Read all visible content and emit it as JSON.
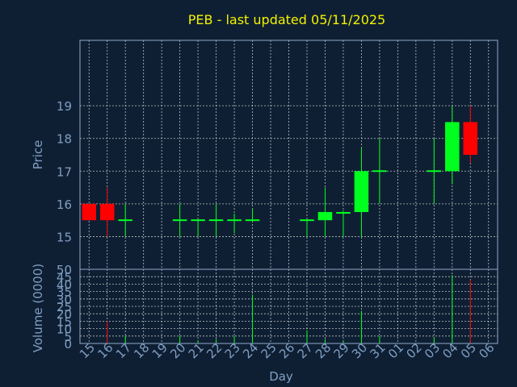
{
  "chart_data": {
    "type": "candlestick",
    "title": "PEB - last updated 05/11/2025",
    "xlabel": "Day",
    "colors": {
      "background": "#0f1f33",
      "title": "#f2f200",
      "axis_text": "#7f9fc4",
      "grid": "#e8e8e8",
      "frame": "#8fa8c8",
      "up": "#00ff1e",
      "down": "#ff0000"
    },
    "days": [
      "15",
      "16",
      "17",
      "18",
      "19",
      "20",
      "21",
      "22",
      "23",
      "24",
      "25",
      "26",
      "27",
      "28",
      "29",
      "30",
      "31",
      "01",
      "02",
      "03",
      "04",
      "05",
      "06"
    ],
    "price_panel": {
      "ylabel": "Price",
      "ylim": [
        14,
        21
      ],
      "ticks": [
        15,
        16,
        17,
        18,
        19
      ]
    },
    "volume_panel": {
      "ylabel": "Volume (0000)",
      "ylim": [
        0,
        50
      ],
      "ticks": [
        0,
        5,
        10,
        15,
        20,
        25,
        30,
        35,
        40,
        45,
        50
      ]
    },
    "candles": [
      {
        "day": "15",
        "open": 16.0,
        "high": 16.0,
        "low": 15.5,
        "close": 15.5,
        "volume": 0
      },
      {
        "day": "16",
        "open": 16.0,
        "high": 16.5,
        "low": 15.0,
        "close": 15.5,
        "volume": 15
      },
      {
        "day": "17",
        "open": 15.5,
        "high": 16.0,
        "low": 15.0,
        "close": 15.5,
        "volume": 5
      },
      {
        "day": "20",
        "open": 15.5,
        "high": 16.0,
        "low": 15.0,
        "close": 15.5,
        "volume": 5
      },
      {
        "day": "21",
        "open": 15.5,
        "high": 15.5,
        "low": 15.0,
        "close": 15.5,
        "volume": 2
      },
      {
        "day": "22",
        "open": 15.5,
        "high": 16.0,
        "low": 15.0,
        "close": 15.5,
        "volume": 3
      },
      {
        "day": "23",
        "open": 15.5,
        "high": 15.7,
        "low": 15.1,
        "close": 15.5,
        "volume": 5
      },
      {
        "day": "24",
        "open": 15.5,
        "high": 15.85,
        "low": 15.5,
        "close": 15.5,
        "volume": 33
      },
      {
        "day": "27",
        "open": 15.5,
        "high": 15.5,
        "low": 15.0,
        "close": 15.5,
        "volume": 9
      },
      {
        "day": "28",
        "open": 15.5,
        "high": 16.5,
        "low": 15.0,
        "close": 15.75,
        "volume": 3
      },
      {
        "day": "29",
        "open": 15.7,
        "high": 15.8,
        "low": 15.0,
        "close": 15.75,
        "volume": 2
      },
      {
        "day": "30",
        "open": 15.75,
        "high": 17.7,
        "low": 15.0,
        "close": 17.0,
        "volume": 22
      },
      {
        "day": "31",
        "open": 17.0,
        "high": 18.0,
        "low": 16.0,
        "close": 17.0,
        "volume": 5
      },
      {
        "day": "03",
        "open": 17.0,
        "high": 18.0,
        "low": 16.0,
        "close": 17.0,
        "volume": 4
      },
      {
        "day": "04",
        "open": 17.0,
        "high": 19.0,
        "low": 16.6,
        "close": 18.5,
        "volume": 46
      },
      {
        "day": "05",
        "open": 18.5,
        "high": 19.0,
        "low": 17.25,
        "close": 17.5,
        "volume": 43
      }
    ]
  }
}
